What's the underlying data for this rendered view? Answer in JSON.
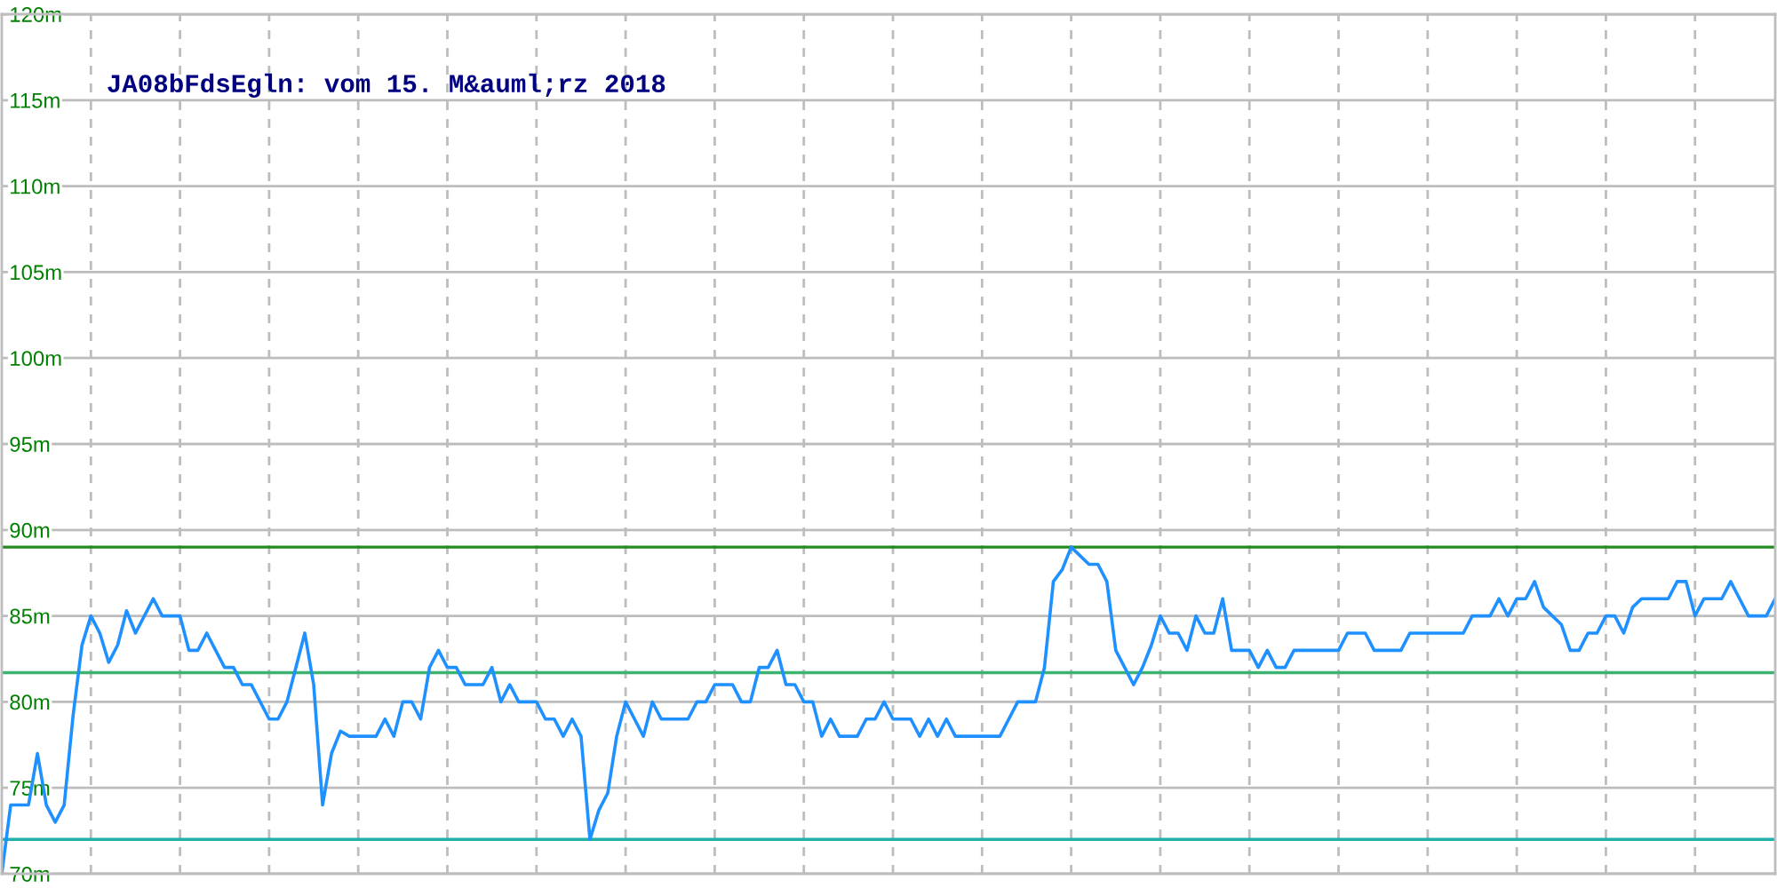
{
  "chart_data": {
    "type": "line",
    "title": "JA08bFdsEgln: vom 15. M&auml;rz 2018",
    "categories": [
      null,
      null,
      null,
      null,
      null,
      null,
      null,
      null,
      null,
      null,
      null,
      null,
      null,
      null,
      null,
      null,
      null,
      null,
      null,
      null,
      null,
      null,
      null,
      null,
      null,
      null,
      null,
      null,
      null,
      null,
      null,
      null,
      null,
      null,
      null,
      null,
      null,
      null,
      null,
      null,
      null,
      null,
      null,
      null,
      null,
      null,
      null,
      null,
      null,
      null,
      null,
      null,
      null,
      null,
      null,
      null,
      null,
      null,
      null,
      null,
      null,
      null,
      null,
      null,
      null,
      null,
      null,
      null,
      null,
      null,
      null,
      null,
      null,
      null,
      null,
      null,
      null,
      null,
      null,
      null,
      null,
      null,
      null,
      null,
      null,
      null,
      null,
      null,
      null,
      null,
      null,
      null,
      null,
      null,
      null,
      null,
      null,
      null,
      null,
      null,
      null,
      null,
      null,
      null,
      null,
      null,
      null,
      null,
      null,
      null,
      null,
      null,
      null,
      null,
      null,
      null,
      null,
      null,
      null,
      null,
      null,
      null,
      null,
      null,
      null,
      null,
      null,
      null,
      null,
      null,
      null,
      null,
      null,
      null,
      null,
      null,
      null,
      null,
      null,
      null,
      null,
      null,
      null,
      null,
      null,
      null,
      null,
      null,
      null,
      null,
      null,
      null,
      null,
      null,
      null,
      null,
      null,
      null,
      null,
      null,
      null,
      null,
      null,
      null,
      null,
      null,
      null,
      null,
      null,
      null,
      null,
      null,
      null,
      null,
      null,
      null,
      null,
      null,
      null,
      null,
      null,
      null,
      null,
      null,
      null,
      null,
      null,
      null,
      null,
      null,
      null,
      null,
      null,
      null,
      null,
      null,
      null,
      null,
      null,
      null
    ],
    "series": [
      {
        "color": "#1e90ff",
        "values": [
          70,
          74,
          74,
          74,
          77,
          74,
          73,
          74,
          79.2,
          83.3,
          85,
          84,
          82.3,
          83.3,
          85.3,
          84,
          85,
          86,
          85,
          85,
          85,
          83,
          83,
          84,
          83,
          82,
          82,
          81,
          81,
          80,
          79,
          79,
          80,
          82,
          84,
          81,
          74,
          77,
          78.3,
          78,
          78,
          78,
          78,
          79,
          78,
          80,
          80,
          79,
          82,
          83,
          82,
          82,
          81,
          81,
          81,
          82,
          80,
          81,
          80,
          80,
          80,
          79,
          79,
          78,
          79,
          78,
          72,
          73.7,
          74.7,
          78,
          80,
          79,
          78,
          80,
          79,
          79,
          79,
          79,
          80,
          80,
          81,
          81,
          81,
          80,
          80,
          82,
          82,
          83,
          81,
          81,
          80,
          80,
          78,
          79,
          78,
          78,
          78,
          79,
          79,
          80,
          79,
          79,
          79,
          78,
          79,
          78,
          79,
          78,
          78,
          78,
          78,
          78,
          78,
          79,
          80,
          80,
          80,
          82,
          87,
          87.7,
          89,
          88.5,
          88,
          88,
          87,
          83,
          82,
          81,
          82,
          83.3,
          85,
          84,
          84,
          83,
          85,
          84,
          84,
          86,
          83,
          83,
          83,
          82,
          83,
          82,
          82,
          83,
          83,
          83,
          83,
          83,
          83,
          84,
          84,
          84,
          83,
          83,
          83,
          83,
          84,
          84,
          84,
          84,
          84,
          84,
          84,
          85,
          85,
          85,
          86,
          85,
          86,
          86,
          87,
          85.5,
          85,
          84.5,
          83,
          83,
          84,
          84,
          85,
          85,
          84,
          85.5,
          86,
          86,
          86,
          86,
          87,
          87,
          85,
          86,
          86,
          86,
          87,
          86,
          85,
          85,
          85,
          86
        ]
      }
    ],
    "ylim": [
      70,
      120
    ],
    "yticks": [
      {
        "value": 70,
        "label": "70m"
      },
      {
        "value": 75,
        "label": "75m"
      },
      {
        "value": 80,
        "label": "80m"
      },
      {
        "value": 85,
        "label": "85m"
      },
      {
        "value": 90,
        "label": "90m"
      },
      {
        "value": 95,
        "label": "95m"
      },
      {
        "value": 100,
        "label": "100m"
      },
      {
        "value": 105,
        "label": "105m"
      },
      {
        "value": 110,
        "label": "110m"
      },
      {
        "value": 115,
        "label": "115m"
      },
      {
        "value": 120,
        "label": "120m"
      }
    ],
    "grid": true,
    "tick_labels": "y",
    "ref_lines": [
      {
        "axis": "y",
        "value": 89,
        "color": "#228b22"
      },
      {
        "axis": "y",
        "value": 81.7,
        "color": "#3cb371"
      },
      {
        "axis": "y",
        "value": 72,
        "color": "#20b2aa"
      }
    ]
  }
}
